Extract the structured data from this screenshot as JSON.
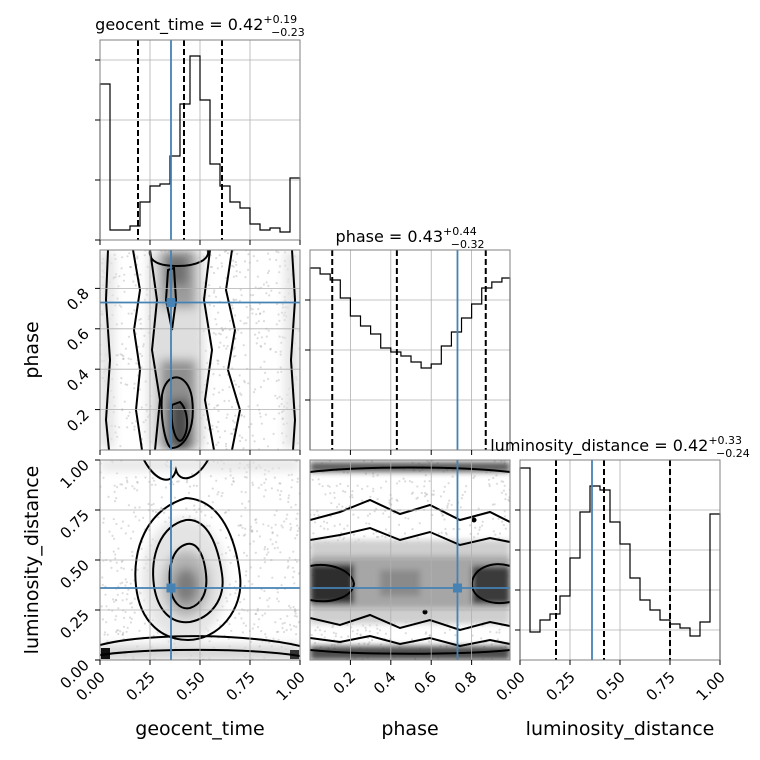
{
  "chart_data": {
    "type": "corner",
    "grid": true,
    "colors": {
      "truth": "#4682b4",
      "hist": "#000000",
      "quantile": "#000000",
      "density": "#000000"
    },
    "parameters": [
      {
        "name": "geocent_time",
        "median": "0.42",
        "plus": "+0.19",
        "minus": "−0.23",
        "truth": 0.355,
        "quantiles": [
          0.19,
          0.42,
          0.61
        ],
        "range": [
          0,
          1
        ]
      },
      {
        "name": "phase",
        "median": "0.43",
        "plus": "+0.44",
        "minus": "−0.32",
        "truth": 0.73,
        "quantiles": [
          0.11,
          0.43,
          0.87
        ],
        "range": [
          0,
          0.99
        ]
      },
      {
        "name": "luminosity_distance",
        "median": "0.42",
        "plus": "+0.33",
        "minus": "−0.24",
        "truth": 0.36,
        "quantiles": [
          0.18,
          0.42,
          0.75
        ],
        "range": [
          0,
          1
        ]
      }
    ],
    "histograms": [
      {
        "param": "geocent_time",
        "bin_edges": [
          0,
          0.05,
          0.1,
          0.15,
          0.2,
          0.25,
          0.3,
          0.35,
          0.4,
          0.45,
          0.5,
          0.55,
          0.6,
          0.65,
          0.7,
          0.75,
          0.8,
          0.85,
          0.9,
          0.95,
          1.0
        ],
        "counts": [
          0.78,
          0.05,
          0.05,
          0.07,
          0.19,
          0.27,
          0.28,
          0.42,
          0.68,
          0.92,
          0.7,
          0.38,
          0.27,
          0.19,
          0.16,
          0.08,
          0.05,
          0.06,
          0.04,
          0.31
        ]
      },
      {
        "param": "phase",
        "bin_edges": [
          0,
          0.05,
          0.1,
          0.15,
          0.2,
          0.25,
          0.3,
          0.35,
          0.4,
          0.45,
          0.5,
          0.55,
          0.6,
          0.65,
          0.7,
          0.75,
          0.8,
          0.85,
          0.9,
          0.95,
          0.99
        ],
        "counts": [
          0.91,
          0.88,
          0.85,
          0.76,
          0.67,
          0.62,
          0.58,
          0.51,
          0.49,
          0.47,
          0.44,
          0.41,
          0.43,
          0.52,
          0.59,
          0.66,
          0.73,
          0.81,
          0.84,
          0.86
        ]
      },
      {
        "param": "luminosity_distance",
        "bin_edges": [
          0,
          0.05,
          0.1,
          0.15,
          0.2,
          0.25,
          0.3,
          0.35,
          0.4,
          0.45,
          0.5,
          0.55,
          0.6,
          0.65,
          0.7,
          0.75,
          0.8,
          0.85,
          0.9,
          0.95,
          1.0
        ],
        "counts": [
          0.96,
          0.14,
          0.2,
          0.23,
          0.32,
          0.51,
          0.74,
          0.87,
          0.85,
          0.69,
          0.58,
          0.41,
          0.3,
          0.25,
          0.2,
          0.18,
          0.16,
          0.12,
          0.19,
          0.73
        ]
      }
    ],
    "panels_2d": [
      {
        "x": "geocent_time",
        "y": "phase",
        "density_columns_x": [
          0.0,
          0.36,
          0.42,
          0.98
        ],
        "truth_point": [
          0.355,
          0.73
        ]
      },
      {
        "x": "geocent_time",
        "y": "luminosity_distance",
        "density_center": [
          0.42,
          0.4
        ],
        "truth_point": [
          0.355,
          0.36
        ]
      },
      {
        "x": "phase",
        "y": "luminosity_distance",
        "density_rows_y": [
          0.0,
          0.4,
          0.99
        ],
        "truth_point": [
          0.73,
          0.36
        ]
      }
    ],
    "tick_labels": {
      "geocent_time": [
        "0.00",
        "0.25",
        "0.50",
        "0.75",
        "1.00"
      ],
      "phase": [
        "0.2",
        "0.4",
        "0.6",
        "0.8"
      ],
      "luminosity_distance": [
        "0.00",
        "0.25",
        "0.50",
        "0.75",
        "1.00"
      ]
    },
    "axis_labels": {
      "x": [
        "geocent_time",
        "phase",
        "luminosity_distance"
      ],
      "y": [
        "phase",
        "luminosity_distance"
      ]
    }
  }
}
